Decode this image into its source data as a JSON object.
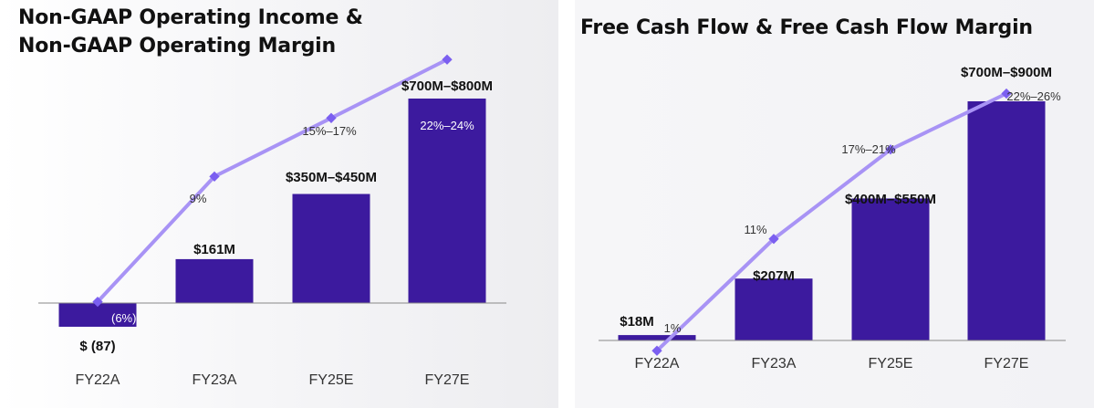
{
  "colors": {
    "bar": "#3c1a9e",
    "line": "#a893f5",
    "marker": "#7b5ff0",
    "baseline": "#888888",
    "text": "#111111"
  },
  "chart_data": [
    {
      "type": "bar",
      "title": "Non-GAAP Operating Income &\nNon-GAAP Operating Margin",
      "categories": [
        "FY22A",
        "FY23A",
        "FY25E",
        "FY27E"
      ],
      "series": [
        {
          "kind": "bar",
          "values": [
            -87,
            161,
            400,
            750
          ],
          "labels": [
            "$ (87)",
            "$161M",
            "$350M–$450M",
            "$700M–$800M"
          ]
        },
        {
          "kind": "line",
          "values": [
            -6,
            9,
            16,
            23
          ],
          "labels": [
            "(6%)",
            "9%",
            "15%–17%",
            "22%–24%"
          ]
        }
      ],
      "grid": false,
      "legend": "none"
    },
    {
      "type": "bar",
      "title": "Free Cash Flow & Free Cash Flow Margin",
      "categories": [
        "FY22A",
        "FY23A",
        "FY25E",
        "FY27E"
      ],
      "series": [
        {
          "kind": "bar",
          "values": [
            18,
            207,
            475,
            800
          ],
          "labels": [
            "$18M",
            "$207M",
            "$400M–$550M",
            "$700M–$900M"
          ]
        },
        {
          "kind": "line",
          "values": [
            1,
            11,
            19,
            24
          ],
          "labels": [
            "1%",
            "11%",
            "17%–21%",
            "22%–26%"
          ]
        }
      ],
      "grid": false,
      "legend": "none"
    }
  ]
}
